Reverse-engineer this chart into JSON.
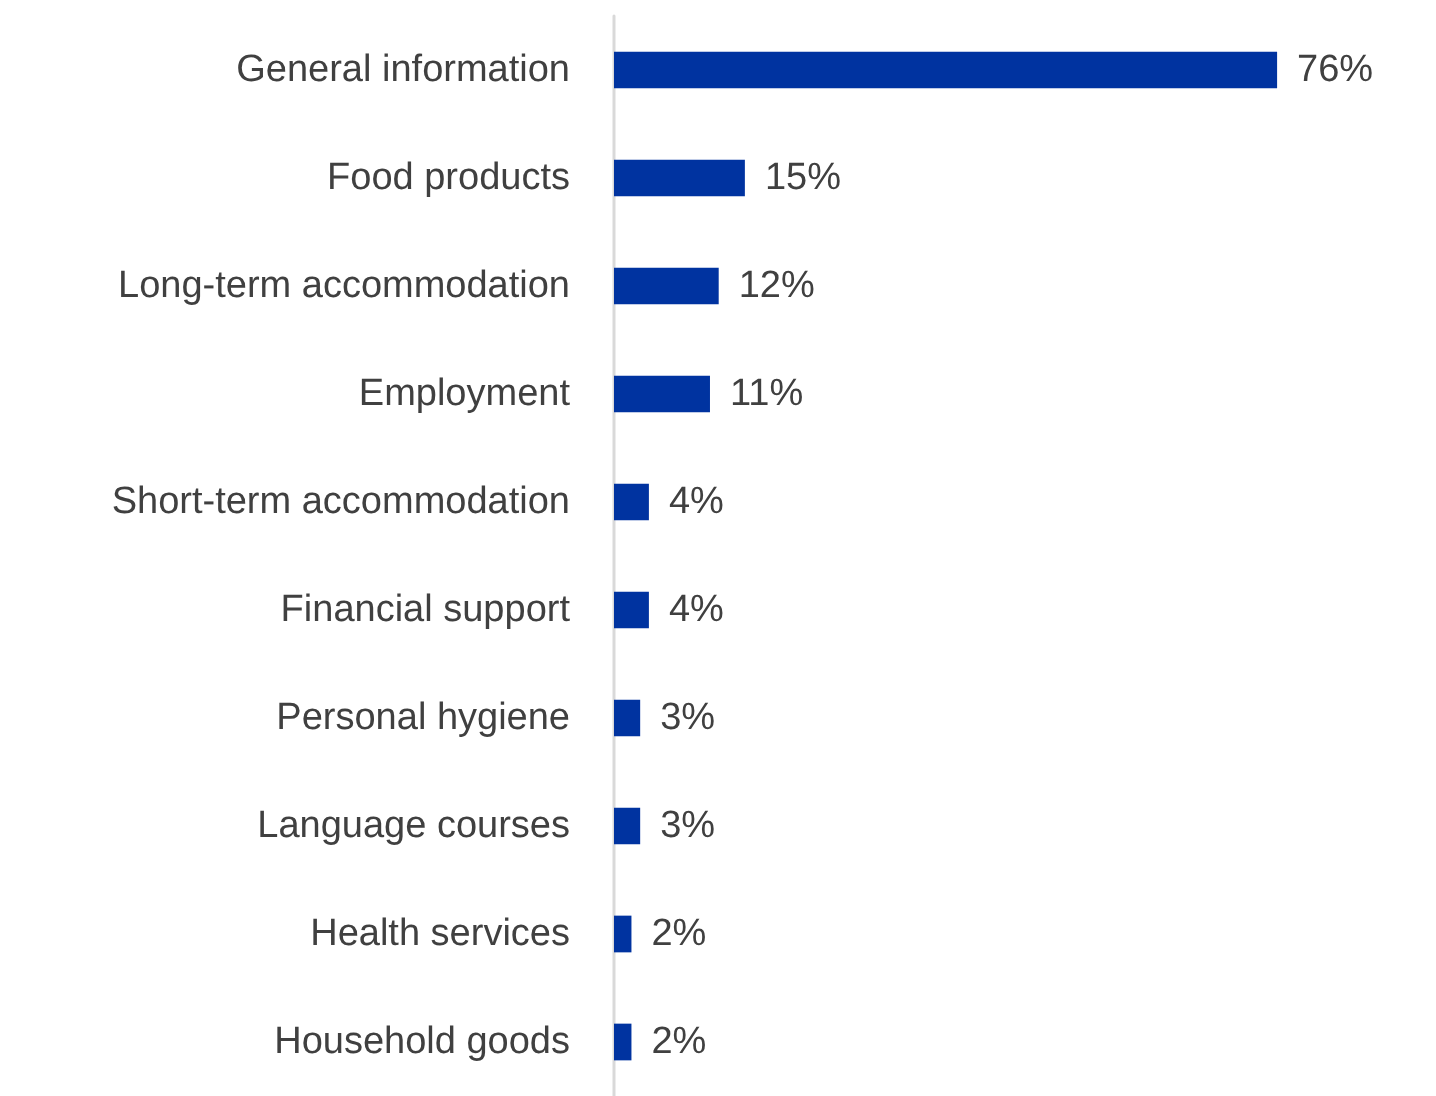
{
  "chart_data": {
    "type": "bar",
    "orientation": "horizontal",
    "categories": [
      "General information",
      "Food products",
      "Long-term accommodation",
      "Employment",
      "Short-term accommodation",
      "Financial support",
      "Personal hygiene",
      "Language courses",
      "Health services",
      "Household goods"
    ],
    "values": [
      76,
      15,
      12,
      11,
      4,
      4,
      3,
      3,
      2,
      2
    ],
    "value_labels": [
      "76%",
      "15%",
      "12%",
      "11%",
      "4%",
      "4%",
      "3%",
      "3%",
      "2%",
      "2%"
    ],
    "color": "#0033a0",
    "grid": false
  }
}
